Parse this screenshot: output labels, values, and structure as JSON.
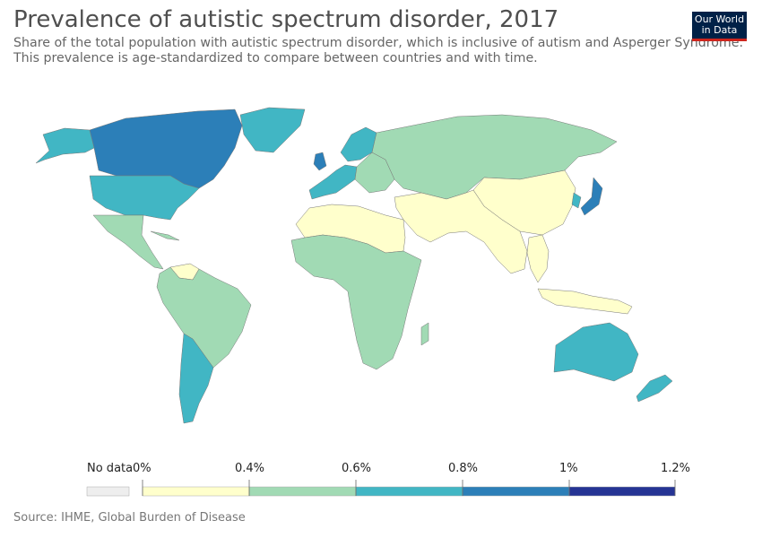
{
  "header": {
    "title": "Prevalence of autistic spectrum disorder, 2017",
    "subtitle_line1": "Share of the total population with autistic spectrum disorder, which is inclusive of autism and Asperger Syndrome.",
    "subtitle_line2": "This prevalence is age-standardized to compare between countries and with time."
  },
  "logo": {
    "line1": "Our World",
    "line2": "in Data"
  },
  "legend": {
    "no_data_label": "No data",
    "tick_labels": [
      "0%",
      "0.4%",
      "0.6%",
      "0.8%",
      "1%",
      "1.2%"
    ],
    "colors": {
      "no_data": "#eeeeee",
      "bin1": "#ffffcc",
      "bin2": "#a1dab4",
      "bin3": "#41b6c4",
      "bin4": "#2c7fb8",
      "bin5": "#253494"
    }
  },
  "source": "Source: IHME, Global Burden of Disease"
}
